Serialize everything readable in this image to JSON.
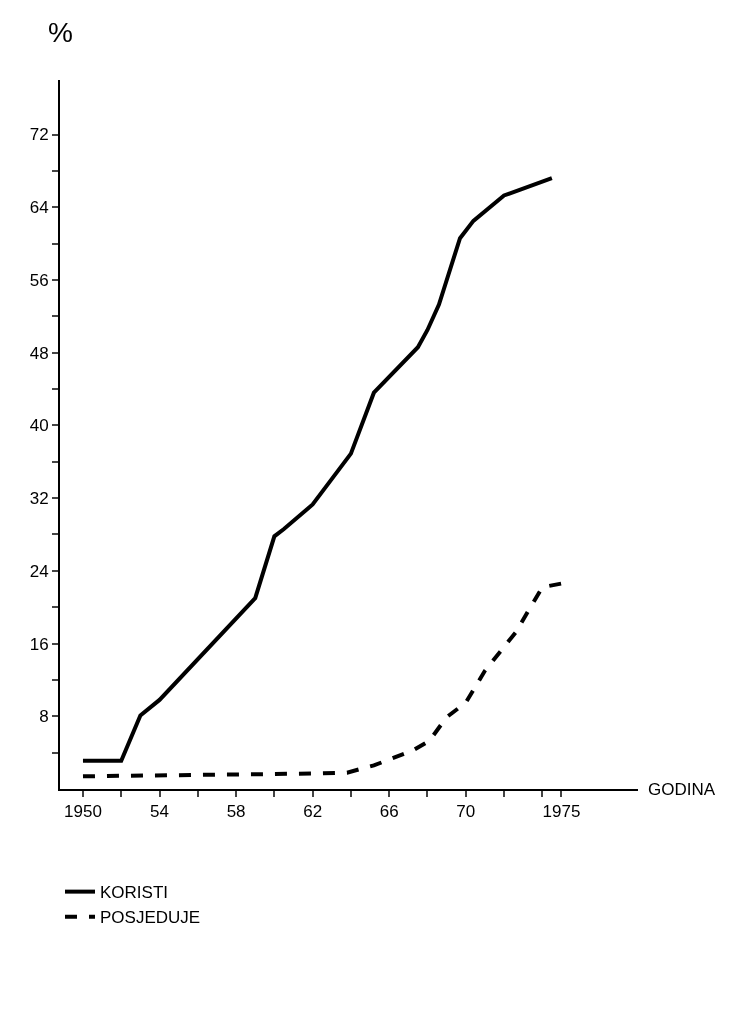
{
  "chart_data": {
    "type": "line",
    "xlabel": "GODINA",
    "ylabel": "%",
    "xlim": [
      1948.8,
      1979
    ],
    "ylim": [
      0,
      78
    ],
    "xticks": [
      1950,
      {
        "value": 1952,
        "label": null
      },
      {
        "value": 1954,
        "label": "54"
      },
      {
        "value": 1956,
        "label": null
      },
      {
        "value": 1958,
        "label": "58"
      },
      {
        "value": 1960,
        "label": null
      },
      {
        "value": 1962,
        "label": "62"
      },
      {
        "value": 1964,
        "label": null
      },
      {
        "value": 1966,
        "label": "66"
      },
      {
        "value": 1968,
        "label": null
      },
      {
        "value": 1970,
        "label": "70"
      },
      {
        "value": 1972,
        "label": null
      },
      {
        "value": 1974,
        "label": null
      },
      1975
    ],
    "yticks": [
      {
        "value": 4,
        "label": null
      },
      8,
      {
        "value": 12,
        "label": null
      },
      16,
      {
        "value": 20,
        "label": null
      },
      24,
      {
        "value": 28,
        "label": null
      },
      32,
      {
        "value": 36,
        "label": null
      },
      40,
      {
        "value": 44,
        "label": null
      },
      48,
      {
        "value": 52,
        "label": null
      },
      56,
      {
        "value": 60,
        "label": null
      },
      64,
      {
        "value": 68,
        "label": null
      },
      72
    ],
    "grid": false,
    "legend": "bottom left",
    "marker": "none",
    "series": [
      {
        "name": "KORISTI",
        "color": "#000000",
        "line_style": "solid",
        "x": [
          1950,
          1952,
          1953,
          1954,
          1959,
          1960,
          1960.5,
          1962,
          1964,
          1965.2,
          1967.5,
          1968,
          1968.6,
          1969.7,
          1970.4,
          1972,
          1974.5
        ],
        "values": [
          3.1,
          3.1,
          8.1,
          9.8,
          21,
          27.8,
          28.6,
          31.3,
          36.9,
          43.6,
          48.6,
          50.5,
          53.3,
          60.6,
          62.5,
          65.3,
          67.2
        ]
      },
      {
        "name": "POSJEDUJE",
        "color": "#000000",
        "line_style": "dashed",
        "x": [
          1950,
          1962,
          1963.8,
          1965.2,
          1967.2,
          1968.1,
          1969,
          1970,
          1971,
          1972.6,
          1974,
          1975
        ],
        "values": [
          1.4,
          1.7,
          1.8,
          2.6,
          4.2,
          5.3,
          7.9,
          9.5,
          13,
          17.2,
          22.2,
          22.6
        ]
      }
    ]
  }
}
